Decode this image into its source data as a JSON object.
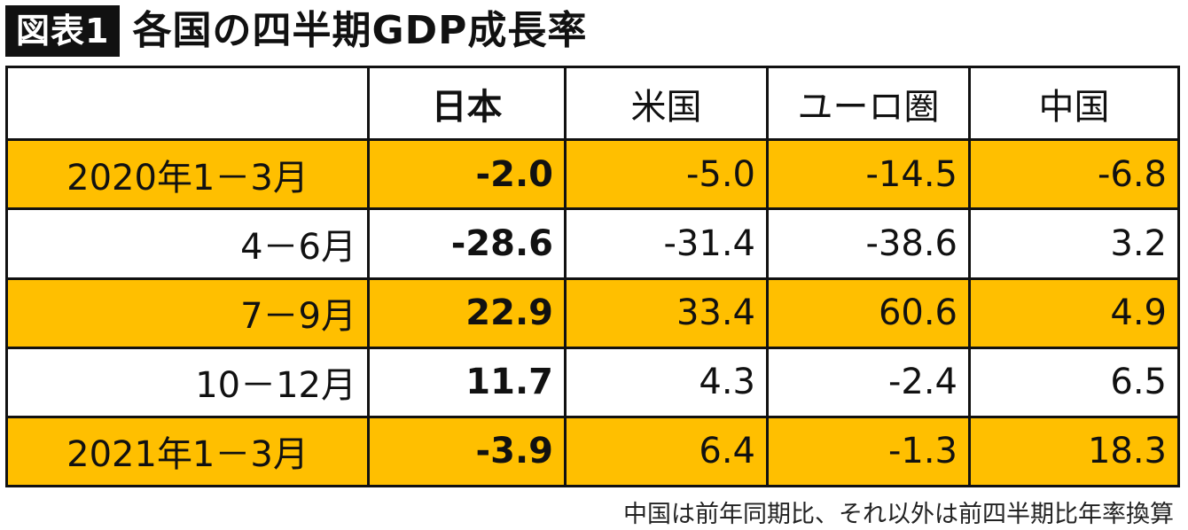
{
  "header": {
    "badge": "図表1",
    "title": "各国の四半期GDP成長率"
  },
  "table": {
    "columns": [
      "",
      "日本",
      "米国",
      "ユーロ圏",
      "中国"
    ],
    "rows": [
      {
        "label": "2020年1－3月",
        "japan": "-2.0",
        "us": "-5.0",
        "euro": "-14.5",
        "china": "-6.8"
      },
      {
        "label": "4－6月",
        "japan": "-28.6",
        "us": "-31.4",
        "euro": "-38.6",
        "china": "3.2"
      },
      {
        "label": "7－9月",
        "japan": "22.9",
        "us": "33.4",
        "euro": "60.6",
        "china": "4.9"
      },
      {
        "label": "10－12月",
        "japan": "11.7",
        "us": "4.3",
        "euro": "-2.4",
        "china": "6.5"
      },
      {
        "label": "2021年1－3月",
        "japan": "-3.9",
        "us": "6.4",
        "euro": "-1.3",
        "china": "18.3"
      }
    ]
  },
  "footnote": "中国は前年同期比、それ以外は前四半期比年率換算",
  "colors": {
    "highlight": "#FFBF00",
    "border": "#111111",
    "badge_bg": "#111111"
  }
}
